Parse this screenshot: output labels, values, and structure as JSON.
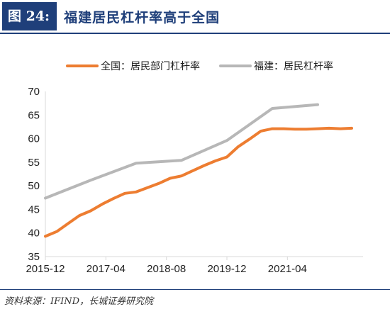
{
  "figure": {
    "label": "图 24:",
    "title": "福建居民杠杆率高于全国",
    "source": "资料来源：IFIND，长城证券研究院"
  },
  "colors": {
    "accent": "#1f3f7a",
    "national": "#ed7d31",
    "fujian": "#b7b7b7"
  },
  "chart_data": {
    "type": "line",
    "x_start": "2015-12",
    "x_end": "2022-12",
    "x_ticks": [
      "2015-12",
      "2017-04",
      "2018-08",
      "2019-12",
      "2021-04"
    ],
    "ylim": [
      35,
      70
    ],
    "y_ticks": [
      35,
      40,
      45,
      50,
      55,
      60,
      65,
      70
    ],
    "legend_position": "top",
    "grid": false,
    "series": [
      {
        "name": "全国：居民部门杠杆率",
        "color": "#ed7d31",
        "points": [
          [
            "2015-12",
            39.3
          ],
          [
            "2016-03",
            40.3
          ],
          [
            "2016-06",
            42.0
          ],
          [
            "2016-09",
            43.7
          ],
          [
            "2016-12",
            44.7
          ],
          [
            "2017-03",
            46.1
          ],
          [
            "2017-06",
            47.3
          ],
          [
            "2017-09",
            48.4
          ],
          [
            "2017-12",
            48.7
          ],
          [
            "2018-03",
            49.6
          ],
          [
            "2018-06",
            50.5
          ],
          [
            "2018-09",
            51.6
          ],
          [
            "2018-12",
            52.1
          ],
          [
            "2019-03",
            53.2
          ],
          [
            "2019-06",
            54.3
          ],
          [
            "2019-09",
            55.3
          ],
          [
            "2019-12",
            56.1
          ],
          [
            "2020-03",
            58.3
          ],
          [
            "2020-06",
            59.9
          ],
          [
            "2020-09",
            61.6
          ],
          [
            "2020-12",
            62.1
          ],
          [
            "2021-03",
            62.1
          ],
          [
            "2021-06",
            62.0
          ],
          [
            "2021-09",
            62.0
          ],
          [
            "2021-12",
            62.1
          ],
          [
            "2022-03",
            62.2
          ],
          [
            "2022-06",
            62.1
          ],
          [
            "2022-09",
            62.2
          ]
        ]
      },
      {
        "name": "福建：居民杠杆率",
        "color": "#b7b7b7",
        "points": [
          [
            "2015-12",
            47.4
          ],
          [
            "2016-12",
            51.2
          ],
          [
            "2017-12",
            54.8
          ],
          [
            "2018-12",
            55.4
          ],
          [
            "2019-12",
            59.6
          ],
          [
            "2020-12",
            66.4
          ],
          [
            "2021-12",
            67.2
          ]
        ]
      }
    ]
  }
}
